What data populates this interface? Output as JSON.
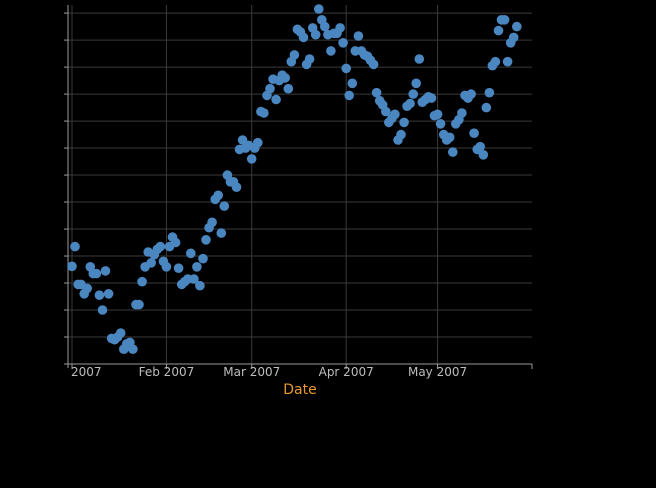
{
  "chart_data": {
    "type": "scatter",
    "title": "",
    "xlabel": "Date",
    "ylabel": "",
    "x_ticks": [
      {
        "label": "2007",
        "date": "2007-01-01"
      },
      {
        "label": "Feb 2007",
        "date": "2007-02-01"
      },
      {
        "label": "Mar 2007",
        "date": "2007-03-01"
      },
      {
        "label": "Apr 2007",
        "date": "2007-04-01"
      },
      {
        "label": "May 2007",
        "date": "2007-05-01"
      }
    ],
    "xlim": [
      "2007-01-01",
      "2007-06-01"
    ],
    "ylim": [
      0,
      13.3
    ],
    "y_ticks": [
      0,
      1,
      2,
      3,
      4,
      5,
      6,
      7,
      8,
      9,
      10,
      11,
      12,
      13
    ],
    "grid": true,
    "color": "#4a86c0",
    "series": [
      {
        "points": [
          {
            "x": "2007-01-01",
            "y": 3.62
          },
          {
            "x": "2007-01-02",
            "y": 4.35
          },
          {
            "x": "2007-01-03",
            "y": 2.95
          },
          {
            "x": "2007-01-04",
            "y": 2.95
          },
          {
            "x": "2007-01-05",
            "y": 2.6
          },
          {
            "x": "2007-01-06",
            "y": 2.8
          },
          {
            "x": "2007-01-07",
            "y": 3.6
          },
          {
            "x": "2007-01-08",
            "y": 3.35
          },
          {
            "x": "2007-01-09",
            "y": 3.35
          },
          {
            "x": "2007-01-10",
            "y": 2.55
          },
          {
            "x": "2007-01-11",
            "y": 2.0
          },
          {
            "x": "2007-01-12",
            "y": 3.45
          },
          {
            "x": "2007-01-13",
            "y": 2.6
          },
          {
            "x": "2007-01-14",
            "y": 0.95
          },
          {
            "x": "2007-01-15",
            "y": 0.9
          },
          {
            "x": "2007-01-16",
            "y": 1.0
          },
          {
            "x": "2007-01-17",
            "y": 1.15
          },
          {
            "x": "2007-01-18",
            "y": 0.55
          },
          {
            "x": "2007-01-19",
            "y": 0.75
          },
          {
            "x": "2007-01-20",
            "y": 0.8
          },
          {
            "x": "2007-01-21",
            "y": 0.55
          },
          {
            "x": "2007-01-22",
            "y": 2.2
          },
          {
            "x": "2007-01-23",
            "y": 2.2
          },
          {
            "x": "2007-01-24",
            "y": 3.05
          },
          {
            "x": "2007-01-25",
            "y": 3.6
          },
          {
            "x": "2007-01-26",
            "y": 4.15
          },
          {
            "x": "2007-01-27",
            "y": 3.75
          },
          {
            "x": "2007-01-28",
            "y": 4.05
          },
          {
            "x": "2007-01-29",
            "y": 4.25
          },
          {
            "x": "2007-01-30",
            "y": 4.35
          },
          {
            "x": "2007-01-31",
            "y": 3.8
          },
          {
            "x": "2007-02-01",
            "y": 3.6
          },
          {
            "x": "2007-02-02",
            "y": 4.35
          },
          {
            "x": "2007-02-03",
            "y": 4.7
          },
          {
            "x": "2007-02-04",
            "y": 4.5
          },
          {
            "x": "2007-02-05",
            "y": 3.55
          },
          {
            "x": "2007-02-06",
            "y": 2.95
          },
          {
            "x": "2007-02-07",
            "y": 3.05
          },
          {
            "x": "2007-02-08",
            "y": 3.15
          },
          {
            "x": "2007-02-09",
            "y": 4.1
          },
          {
            "x": "2007-02-10",
            "y": 3.15
          },
          {
            "x": "2007-02-11",
            "y": 3.6
          },
          {
            "x": "2007-02-12",
            "y": 2.9
          },
          {
            "x": "2007-02-13",
            "y": 3.9
          },
          {
            "x": "2007-02-14",
            "y": 4.6
          },
          {
            "x": "2007-02-15",
            "y": 5.05
          },
          {
            "x": "2007-02-16",
            "y": 5.25
          },
          {
            "x": "2007-02-17",
            "y": 6.1
          },
          {
            "x": "2007-02-18",
            "y": 6.25
          },
          {
            "x": "2007-02-19",
            "y": 4.85
          },
          {
            "x": "2007-02-20",
            "y": 5.85
          },
          {
            "x": "2007-02-21",
            "y": 7.0
          },
          {
            "x": "2007-02-22",
            "y": 6.75
          },
          {
            "x": "2007-02-23",
            "y": 6.75
          },
          {
            "x": "2007-02-24",
            "y": 6.55
          },
          {
            "x": "2007-02-25",
            "y": 7.95
          },
          {
            "x": "2007-02-26",
            "y": 8.3
          },
          {
            "x": "2007-02-27",
            "y": 8.0
          },
          {
            "x": "2007-02-28",
            "y": 8.1
          },
          {
            "x": "2007-03-01",
            "y": 7.6
          },
          {
            "x": "2007-03-02",
            "y": 8.0
          },
          {
            "x": "2007-03-03",
            "y": 8.2
          },
          {
            "x": "2007-03-04",
            "y": 9.35
          },
          {
            "x": "2007-03-05",
            "y": 9.3
          },
          {
            "x": "2007-03-06",
            "y": 9.95
          },
          {
            "x": "2007-03-07",
            "y": 10.2
          },
          {
            "x": "2007-03-08",
            "y": 10.55
          },
          {
            "x": "2007-03-09",
            "y": 9.8
          },
          {
            "x": "2007-03-10",
            "y": 10.5
          },
          {
            "x": "2007-03-11",
            "y": 10.7
          },
          {
            "x": "2007-03-12",
            "y": 10.6
          },
          {
            "x": "2007-03-13",
            "y": 10.2
          },
          {
            "x": "2007-03-14",
            "y": 11.2
          },
          {
            "x": "2007-03-15",
            "y": 11.45
          },
          {
            "x": "2007-03-16",
            "y": 12.4
          },
          {
            "x": "2007-03-17",
            "y": 12.3
          },
          {
            "x": "2007-03-18",
            "y": 12.1
          },
          {
            "x": "2007-03-19",
            "y": 11.1
          },
          {
            "x": "2007-03-20",
            "y": 11.3
          },
          {
            "x": "2007-03-21",
            "y": 12.45
          },
          {
            "x": "2007-03-22",
            "y": 12.2
          },
          {
            "x": "2007-03-23",
            "y": 13.15
          },
          {
            "x": "2007-03-24",
            "y": 12.75
          },
          {
            "x": "2007-03-25",
            "y": 12.5
          },
          {
            "x": "2007-03-26",
            "y": 12.2
          },
          {
            "x": "2007-03-27",
            "y": 11.6
          },
          {
            "x": "2007-03-28",
            "y": 12.25
          },
          {
            "x": "2007-03-29",
            "y": 12.25
          },
          {
            "x": "2007-03-30",
            "y": 12.45
          },
          {
            "x": "2007-03-31",
            "y": 11.9
          },
          {
            "x": "2007-04-01",
            "y": 10.95
          },
          {
            "x": "2007-04-02",
            "y": 9.95
          },
          {
            "x": "2007-04-03",
            "y": 10.4
          },
          {
            "x": "2007-04-04",
            "y": 11.6
          },
          {
            "x": "2007-04-05",
            "y": 12.15
          },
          {
            "x": "2007-04-06",
            "y": 11.6
          },
          {
            "x": "2007-04-07",
            "y": 11.45
          },
          {
            "x": "2007-04-08",
            "y": 11.4
          },
          {
            "x": "2007-04-09",
            "y": 11.25
          },
          {
            "x": "2007-04-10",
            "y": 11.1
          },
          {
            "x": "2007-04-11",
            "y": 10.05
          },
          {
            "x": "2007-04-12",
            "y": 9.75
          },
          {
            "x": "2007-04-13",
            "y": 9.6
          },
          {
            "x": "2007-04-14",
            "y": 9.35
          },
          {
            "x": "2007-04-15",
            "y": 8.95
          },
          {
            "x": "2007-04-16",
            "y": 9.1
          },
          {
            "x": "2007-04-17",
            "y": 9.25
          },
          {
            "x": "2007-04-18",
            "y": 8.3
          },
          {
            "x": "2007-04-19",
            "y": 8.5
          },
          {
            "x": "2007-04-20",
            "y": 8.95
          },
          {
            "x": "2007-04-21",
            "y": 9.55
          },
          {
            "x": "2007-04-22",
            "y": 9.65
          },
          {
            "x": "2007-04-23",
            "y": 10.0
          },
          {
            "x": "2007-04-24",
            "y": 10.4
          },
          {
            "x": "2007-04-25",
            "y": 11.3
          },
          {
            "x": "2007-04-26",
            "y": 9.7
          },
          {
            "x": "2007-04-27",
            "y": 9.8
          },
          {
            "x": "2007-04-28",
            "y": 9.9
          },
          {
            "x": "2007-04-29",
            "y": 9.85
          },
          {
            "x": "2007-04-30",
            "y": 9.2
          },
          {
            "x": "2007-05-01",
            "y": 9.25
          },
          {
            "x": "2007-05-02",
            "y": 8.9
          },
          {
            "x": "2007-05-03",
            "y": 8.5
          },
          {
            "x": "2007-05-04",
            "y": 8.3
          },
          {
            "x": "2007-05-05",
            "y": 8.4
          },
          {
            "x": "2007-05-06",
            "y": 7.85
          },
          {
            "x": "2007-05-07",
            "y": 8.9
          },
          {
            "x": "2007-05-08",
            "y": 9.05
          },
          {
            "x": "2007-05-09",
            "y": 9.3
          },
          {
            "x": "2007-05-10",
            "y": 9.95
          },
          {
            "x": "2007-05-11",
            "y": 9.85
          },
          {
            "x": "2007-05-12",
            "y": 10.0
          },
          {
            "x": "2007-05-13",
            "y": 8.55
          },
          {
            "x": "2007-05-14",
            "y": 7.95
          },
          {
            "x": "2007-05-15",
            "y": 8.05
          },
          {
            "x": "2007-05-16",
            "y": 7.75
          },
          {
            "x": "2007-05-17",
            "y": 9.5
          },
          {
            "x": "2007-05-18",
            "y": 10.05
          },
          {
            "x": "2007-05-19",
            "y": 11.05
          },
          {
            "x": "2007-05-20",
            "y": 11.2
          },
          {
            "x": "2007-05-21",
            "y": 12.35
          },
          {
            "x": "2007-05-22",
            "y": 12.75
          },
          {
            "x": "2007-05-23",
            "y": 12.75
          },
          {
            "x": "2007-05-24",
            "y": 11.2
          },
          {
            "x": "2007-05-25",
            "y": 11.9
          },
          {
            "x": "2007-05-26",
            "y": 12.1
          },
          {
            "x": "2007-05-27",
            "y": 12.5
          }
        ]
      }
    ]
  }
}
